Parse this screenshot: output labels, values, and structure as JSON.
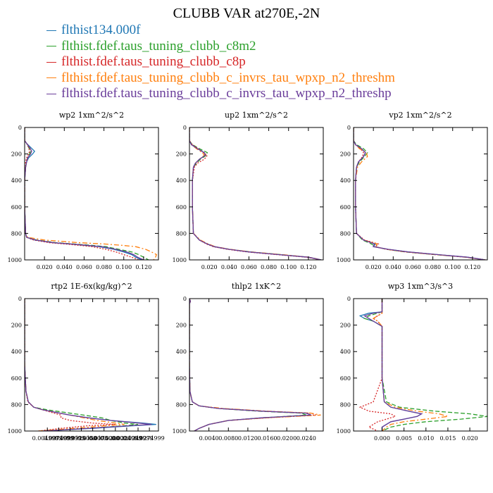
{
  "title": "CLUBB VAR at270E,-2N",
  "legend": [
    {
      "label": "flthist134.000f",
      "color": "#1f77b4"
    },
    {
      "label": "flthist.fdef.taus_tuning_clubb_c8m2",
      "color": "#2ca02c"
    },
    {
      "label": "flthist.fdef.taus_tuning_clubb_c8p",
      "color": "#d62728"
    },
    {
      "label": "flthist.fdef.taus_tuning_clubb_c_invrs_tau_wpxp_n2_threshm",
      "color": "#ff7f0e"
    },
    {
      "label": "flthist.fdef.taus_tuning_clubb_c_invrs_tau_wpxp_n2_threshp",
      "color": "#6a3d9a"
    }
  ],
  "series_styles": [
    "solid",
    "dashed",
    "dotted",
    "dashdot",
    "solid"
  ],
  "chart_data": [
    {
      "type": "line",
      "title": "wp2  1xm^2/s^2",
      "xlim": [
        0,
        0.135
      ],
      "ylim": [
        1000,
        0
      ],
      "xticks": [
        0.02,
        0.04,
        0.06,
        0.08,
        0.1,
        0.12
      ],
      "xtick_labels": [
        "0.020",
        "0.040",
        "0.060",
        "0.080",
        "0.100",
        "0.120"
      ],
      "yticks": [
        0,
        200,
        400,
        600,
        800,
        1000
      ],
      "ytick_labels": [
        "0",
        "200",
        "400",
        "600",
        "800",
        "1000"
      ],
      "y": [
        0,
        100,
        120,
        150,
        180,
        200,
        230,
        260,
        300,
        400,
        600,
        800,
        830,
        850,
        870,
        880,
        890,
        900,
        920,
        940,
        960,
        980,
        1000
      ],
      "series": [
        {
          "values": [
            0,
            0,
            0.002,
            0.006,
            0.01,
            0.008,
            0.004,
            0.002,
            0.001,
            0,
            0,
            0.001,
            0.002,
            0.01,
            0.028,
            0.045,
            0.06,
            0.075,
            0.09,
            0.1,
            0.108,
            0.112,
            0.118
          ]
        },
        {
          "values": [
            0,
            0,
            0.002,
            0.004,
            0.006,
            0.005,
            0.003,
            0.002,
            0.001,
            0,
            0,
            0.001,
            0.002,
            0.012,
            0.032,
            0.05,
            0.067,
            0.082,
            0.095,
            0.108,
            0.115,
            0.12,
            0.125
          ]
        },
        {
          "values": [
            0,
            0,
            0.002,
            0.004,
            0.005,
            0.004,
            0.002,
            0.001,
            0.001,
            0,
            0,
            0.001,
            0.002,
            0.009,
            0.025,
            0.04,
            0.055,
            0.068,
            0.082,
            0.092,
            0.1,
            0.108,
            0.115
          ]
        },
        {
          "values": [
            0,
            0,
            0.002,
            0.005,
            0.007,
            0.006,
            0.003,
            0.002,
            0.001,
            0,
            0,
            0.001,
            0.003,
            0.02,
            0.055,
            0.08,
            0.098,
            0.112,
            0.122,
            0.128,
            0.133,
            0.132,
            0.13
          ]
        },
        {
          "values": [
            0,
            0,
            0.002,
            0.005,
            0.007,
            0.006,
            0.003,
            0.002,
            0.001,
            0,
            0,
            0.001,
            0.002,
            0.011,
            0.03,
            0.047,
            0.063,
            0.078,
            0.092,
            0.103,
            0.11,
            0.114,
            0.12
          ]
        }
      ]
    },
    {
      "type": "line",
      "title": "up2  1xm^2/s^2",
      "xlim": [
        0,
        0.135
      ],
      "ylim": [
        1000,
        0
      ],
      "xticks": [
        0.02,
        0.04,
        0.06,
        0.08,
        0.1,
        0.12
      ],
      "xtick_labels": [
        "0.020",
        "0.040",
        "0.060",
        "0.080",
        "0.100",
        "0.120"
      ],
      "yticks": [
        0,
        200,
        400,
        600,
        800,
        1000
      ],
      "ytick_labels": [
        "0",
        "200",
        "400",
        "600",
        "800",
        "1000"
      ],
      "y": [
        0,
        100,
        130,
        160,
        190,
        210,
        240,
        270,
        300,
        400,
        600,
        800,
        850,
        880,
        900,
        920,
        940,
        960,
        980,
        1000
      ],
      "series": [
        {
          "values": [
            0,
            0,
            0.002,
            0.008,
            0.015,
            0.016,
            0.01,
            0.006,
            0.004,
            0.003,
            0.003,
            0.004,
            0.01,
            0.018,
            0.025,
            0.04,
            0.06,
            0.09,
            0.12,
            0.133
          ]
        },
        {
          "values": [
            0,
            0,
            0.003,
            0.01,
            0.018,
            0.017,
            0.011,
            0.007,
            0.004,
            0.003,
            0.003,
            0.004,
            0.01,
            0.018,
            0.025,
            0.04,
            0.062,
            0.092,
            0.12,
            0.133
          ]
        },
        {
          "values": [
            0,
            0,
            0.003,
            0.009,
            0.014,
            0.018,
            0.015,
            0.008,
            0.005,
            0.003,
            0.003,
            0.004,
            0.01,
            0.017,
            0.024,
            0.038,
            0.058,
            0.088,
            0.118,
            0.133
          ]
        },
        {
          "values": [
            0,
            0,
            0.002,
            0.007,
            0.013,
            0.015,
            0.01,
            0.006,
            0.004,
            0.003,
            0.003,
            0.004,
            0.011,
            0.019,
            0.026,
            0.041,
            0.062,
            0.093,
            0.121,
            0.133
          ]
        },
        {
          "values": [
            0,
            0,
            0.002,
            0.008,
            0.015,
            0.016,
            0.01,
            0.006,
            0.004,
            0.003,
            0.003,
            0.004,
            0.01,
            0.018,
            0.025,
            0.04,
            0.06,
            0.09,
            0.12,
            0.133
          ]
        }
      ]
    },
    {
      "type": "line",
      "title": "vp2  1xm^2/s^2",
      "xlim": [
        0,
        0.135
      ],
      "ylim": [
        1000,
        0
      ],
      "xticks": [
        0.02,
        0.04,
        0.06,
        0.08,
        0.1,
        0.12
      ],
      "xtick_labels": [
        "0.020",
        "0.040",
        "0.060",
        "0.080",
        "0.100",
        "0.120"
      ],
      "yticks": [
        0,
        200,
        400,
        600,
        800,
        1000
      ],
      "ytick_labels": [
        "0",
        "200",
        "400",
        "600",
        "800",
        "1000"
      ],
      "y": [
        0,
        100,
        130,
        160,
        190,
        220,
        260,
        300,
        400,
        600,
        800,
        850,
        880,
        900,
        920,
        940,
        960,
        980,
        1000
      ],
      "series": [
        {
          "values": [
            0,
            0,
            0.002,
            0.008,
            0.012,
            0.01,
            0.005,
            0.003,
            0.002,
            0.002,
            0.003,
            0.01,
            0.022,
            0.02,
            0.035,
            0.055,
            0.085,
            0.115,
            0.133
          ]
        },
        {
          "values": [
            0,
            0,
            0.003,
            0.01,
            0.014,
            0.011,
            0.006,
            0.003,
            0.002,
            0.002,
            0.003,
            0.009,
            0.018,
            0.022,
            0.033,
            0.052,
            0.082,
            0.113,
            0.133
          ]
        },
        {
          "values": [
            0,
            0,
            0.002,
            0.007,
            0.01,
            0.009,
            0.005,
            0.003,
            0.002,
            0.002,
            0.003,
            0.011,
            0.025,
            0.022,
            0.033,
            0.052,
            0.082,
            0.113,
            0.133
          ]
        },
        {
          "values": [
            0,
            0,
            0.002,
            0.006,
            0.013,
            0.014,
            0.008,
            0.004,
            0.002,
            0.002,
            0.003,
            0.01,
            0.024,
            0.021,
            0.034,
            0.054,
            0.084,
            0.114,
            0.133
          ]
        },
        {
          "values": [
            0,
            0,
            0.002,
            0.008,
            0.012,
            0.01,
            0.005,
            0.003,
            0.002,
            0.002,
            0.003,
            0.01,
            0.021,
            0.02,
            0.035,
            0.055,
            0.085,
            0.115,
            0.133
          ]
        }
      ]
    },
    {
      "type": "line",
      "title": "rtp2  1E-6x(kg/kg)^2",
      "xlim": [
        0,
        0.0295
      ],
      "ylim": [
        1000,
        0
      ],
      "xticks": [
        0.005,
        0.0075,
        0.01,
        0.0125,
        0.015,
        0.0175,
        0.02,
        0.0225,
        0.025,
        0.0275
      ],
      "xtick_labels": [
        "0.0049999",
        "0.0074999",
        "0.0099999",
        "0.0125000",
        "0.0150000",
        "0.0175000",
        "0.0200000",
        "0.0224999",
        "0.0249999",
        "0.0274999"
      ],
      "yticks": [
        0,
        200,
        400,
        600,
        800,
        1000
      ],
      "ytick_labels": [
        "0",
        "200",
        "400",
        "600",
        "800",
        "1000"
      ],
      "y": [
        0,
        100,
        300,
        500,
        700,
        780,
        820,
        840,
        860,
        880,
        900,
        920,
        940,
        950,
        960,
        980,
        1000
      ],
      "series": [
        {
          "values": [
            0,
            0,
            0,
            0,
            0.0003,
            0.0008,
            0.002,
            0.004,
            0.007,
            0.01,
            0.014,
            0.019,
            0.026,
            0.029,
            0.024,
            0.015,
            0.004
          ]
        },
        {
          "values": [
            0,
            0,
            0,
            0,
            0.0003,
            0.0008,
            0.002,
            0.005,
            0.009,
            0.013,
            0.017,
            0.019,
            0.022,
            0.025,
            0.022,
            0.014,
            0.004
          ]
        },
        {
          "values": [
            0,
            0,
            0,
            0,
            0.0003,
            0.0007,
            0.002,
            0.004,
            0.006,
            0.008,
            0.008,
            0.01,
            0.015,
            0.02,
            0.014,
            0.008,
            0.003
          ]
        },
        {
          "values": [
            0,
            0,
            0,
            0,
            0.0003,
            0.0008,
            0.002,
            0.004,
            0.007,
            0.01,
            0.013,
            0.016,
            0.02,
            0.022,
            0.018,
            0.011,
            0.003
          ]
        },
        {
          "values": [
            0,
            0,
            0,
            0,
            0.0003,
            0.0008,
            0.002,
            0.004,
            0.007,
            0.01,
            0.014,
            0.019,
            0.025,
            0.028,
            0.023,
            0.014,
            0.004
          ]
        }
      ]
    },
    {
      "type": "line",
      "title": "thlp2  1xK^2",
      "xlim": [
        0,
        0.0275
      ],
      "ylim": [
        1000,
        0
      ],
      "xticks": [
        0.004,
        0.008,
        0.012,
        0.016,
        0.02,
        0.024
      ],
      "xtick_labels": [
        "0.0040",
        "0.0080",
        "0.0120",
        "0.0160",
        "0.0200",
        "0.0240"
      ],
      "yticks": [
        0,
        200,
        400,
        600,
        800,
        1000
      ],
      "ytick_labels": [
        "0",
        "200",
        "400",
        "600",
        "800",
        "1000"
      ],
      "y": [
        0,
        20,
        40,
        100,
        300,
        500,
        700,
        780,
        810,
        830,
        850,
        865,
        880,
        900,
        920,
        950,
        980,
        1000
      ],
      "series": [
        {
          "values": [
            0,
            0.0002,
            0,
            0,
            0,
            0,
            0.0001,
            0.0006,
            0.002,
            0.006,
            0.015,
            0.024,
            0.025,
            0.015,
            0.008,
            0.004,
            0.002,
            0.001
          ]
        },
        {
          "values": [
            0,
            0.0002,
            0,
            0,
            0,
            0,
            0.0001,
            0.0006,
            0.002,
            0.006,
            0.014,
            0.023,
            0.024,
            0.015,
            0.008,
            0.004,
            0.002,
            0.001
          ]
        },
        {
          "values": [
            0,
            0.0002,
            0,
            0,
            0,
            0,
            0.0001,
            0.0006,
            0.002,
            0.006,
            0.015,
            0.025,
            0.026,
            0.016,
            0.008,
            0.004,
            0.002,
            0.001
          ]
        },
        {
          "values": [
            0,
            0.0002,
            0,
            0,
            0,
            0,
            0.0001,
            0.0006,
            0.002,
            0.007,
            0.016,
            0.025,
            0.027,
            0.016,
            0.008,
            0.004,
            0.002,
            0.001
          ]
        },
        {
          "values": [
            0,
            0.0002,
            0,
            0,
            0,
            0,
            0.0001,
            0.0006,
            0.002,
            0.006,
            0.015,
            0.024,
            0.025,
            0.015,
            0.008,
            0.004,
            0.002,
            0.001
          ]
        }
      ]
    },
    {
      "type": "line",
      "title": "wp3  1xm^3/s^3",
      "xlim": [
        -0.0065,
        0.024
      ],
      "ylim": [
        1000,
        0
      ],
      "xticks": [
        0,
        0.005,
        0.01,
        0.015,
        0.02
      ],
      "xtick_labels": [
        "0.000",
        "0.005",
        "0.010",
        "0.015",
        "0.020"
      ],
      "yticks": [
        0,
        200,
        400,
        600,
        800,
        1000
      ],
      "ytick_labels": [
        "0",
        "200",
        "400",
        "600",
        "800",
        "1000"
      ],
      "y": [
        0,
        100,
        110,
        130,
        150,
        170,
        190,
        210,
        250,
        400,
        600,
        780,
        820,
        850,
        870,
        890,
        910,
        930,
        950,
        970,
        1000
      ],
      "series": [
        {
          "values": [
            0,
            0,
            -0.003,
            -0.005,
            -0.004,
            -0.002,
            -0.001,
            0,
            0,
            0,
            0,
            0.0005,
            0.002,
            0.006,
            0.009,
            0.008,
            0.005,
            0.002,
            0.001,
            0,
            0
          ]
        },
        {
          "values": [
            0,
            0,
            -0.001,
            -0.003,
            -0.004,
            -0.002,
            -0.001,
            0,
            0,
            0,
            0,
            0.001,
            0.004,
            0.012,
            0.02,
            0.024,
            0.018,
            0.01,
            0.005,
            0.002,
            0
          ]
        },
        {
          "values": [
            0,
            0,
            0,
            -0.001,
            -0.002,
            -0.001,
            -0.0005,
            0,
            0,
            0,
            0,
            -0.002,
            -0.005,
            -0.003,
            0.002,
            0.003,
            0.001,
            -0.001,
            -0.002,
            -0.003,
            -0.001
          ]
        },
        {
          "values": [
            0,
            0,
            0,
            -0.001,
            -0.002,
            -0.001,
            -0.0005,
            0,
            0,
            0,
            0,
            0.0005,
            0.003,
            0.008,
            0.013,
            0.015,
            0.01,
            0.005,
            0.002,
            0.001,
            0
          ]
        },
        {
          "values": [
            0,
            0,
            -0.002,
            -0.004,
            -0.003,
            -0.002,
            -0.001,
            0,
            0,
            0,
            0,
            0.0005,
            0.002,
            0.006,
            0.009,
            0.008,
            0.005,
            0.002,
            0.001,
            0,
            0
          ]
        }
      ]
    }
  ]
}
